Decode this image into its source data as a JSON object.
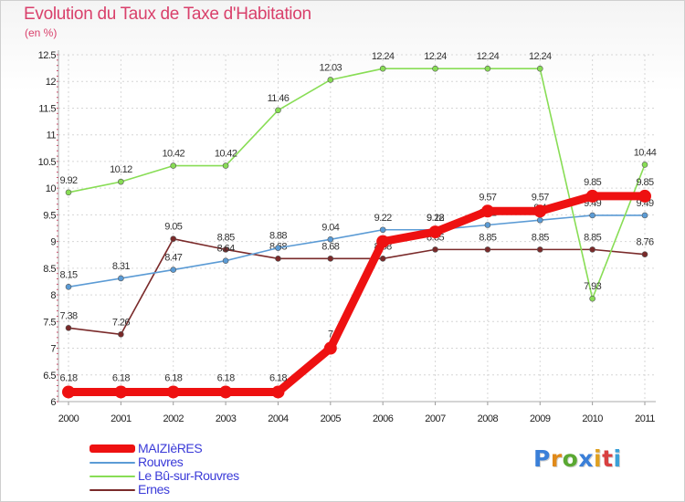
{
  "title": "Evolution du Taux de Taxe d'Habitation",
  "subtitle": "(en %)",
  "logo": {
    "text": "Proxiti"
  },
  "chart_data": {
    "type": "line",
    "title": "Evolution du Taux de Taxe d'Habitation",
    "subtitle": "(en %)",
    "x": [
      "2000",
      "2001",
      "2002",
      "2003",
      "2004",
      "2005",
      "2006",
      "2007",
      "2008",
      "2009",
      "2010",
      "2011"
    ],
    "ylim": [
      6,
      12.5
    ],
    "y_ticks": [
      "6",
      "6.5",
      "7",
      "7.5",
      "8",
      "8.5",
      "9",
      "9.5",
      "10",
      "10.5",
      "11",
      "11.5",
      "12",
      "12.5"
    ],
    "grid": true,
    "legend_position": "bottom-left",
    "series": [
      {
        "name": "MAIZIèRES",
        "color": "#ee1111",
        "values": [
          6.18,
          6.18,
          6.18,
          6.18,
          6.18,
          7,
          9,
          9.18,
          9.57,
          9.57,
          9.85,
          9.85
        ],
        "labels": [
          "6.18",
          "6.18",
          "6.18",
          "6.18",
          "6.18",
          "7",
          "",
          "9.18",
          "9.57",
          "9.57",
          "9.85",
          "9.85"
        ]
      },
      {
        "name": "Rouvres",
        "color": "#5b9bd5",
        "values": [
          8.15,
          8.31,
          8.47,
          8.64,
          8.88,
          9.04,
          9.22,
          9.22,
          9.31,
          9.4,
          9.49,
          9.49
        ],
        "labels": [
          "8.15",
          "8.31",
          "8.47",
          "8.64",
          "8.88",
          "9.04",
          "9.22",
          "9.22",
          "9.31",
          "9.4",
          "9.49",
          "9.49"
        ]
      },
      {
        "name": "Le Bû-sur-Rouvres",
        "color": "#88dd55",
        "values": [
          9.92,
          10.12,
          10.42,
          10.42,
          11.46,
          12.03,
          12.24,
          12.24,
          12.24,
          12.24,
          7.93,
          10.44
        ],
        "labels": [
          "9.92",
          "10.12",
          "10.42",
          "10.42",
          "11.46",
          "12.03",
          "12.24",
          "12.24",
          "12.24",
          "12.24",
          "7.93",
          "10.44"
        ]
      },
      {
        "name": "Ernes",
        "color": "#7a2a2a",
        "values": [
          7.38,
          7.26,
          9.05,
          8.85,
          8.68,
          8.68,
          8.68,
          8.85,
          8.85,
          8.85,
          8.85,
          8.76
        ],
        "labels": [
          "7.38",
          "7.26",
          "9.05",
          "8.85",
          "8.68",
          "8.68",
          "8.68",
          "8.85",
          "8.85",
          "8.85",
          "8.85",
          "8.76"
        ]
      }
    ]
  }
}
